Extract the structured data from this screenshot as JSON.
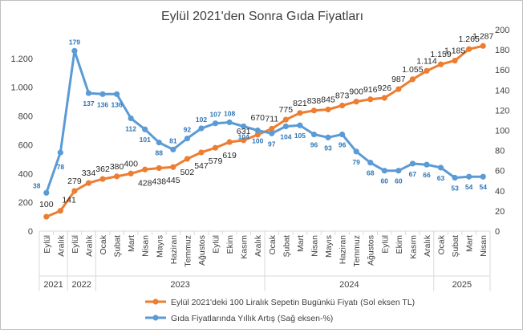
{
  "chart_data": {
    "type": "line",
    "title": "Eylül 2021'den Sonra Gıda Fiyatları",
    "left_axis": {
      "ylim": [
        0,
        1400
      ],
      "ticks": [
        "0",
        "200",
        "400",
        "600",
        "800",
        "1.000",
        "1.200"
      ],
      "tick_values": [
        0,
        200,
        400,
        600,
        800,
        1000,
        1200
      ]
    },
    "right_axis": {
      "ylim": [
        0,
        200
      ],
      "ticks": [
        "0",
        "20",
        "40",
        "60",
        "80",
        "100",
        "120",
        "140",
        "160",
        "180",
        "200"
      ],
      "tick_values": [
        0,
        20,
        40,
        60,
        80,
        100,
        120,
        140,
        160,
        180,
        200
      ]
    },
    "categories": [
      "Eylül",
      "Aralık",
      "Eylül",
      "Aralık",
      "Ocak",
      "Şubat",
      "Mart",
      "Nisan",
      "Mayıs",
      "Haziran",
      "Temmuz",
      "Ağustos",
      "Eylül",
      "Ekim",
      "Kasım",
      "Aralık",
      "Ocak",
      "Şubat",
      "Mart",
      "Nisan",
      "Mayıs",
      "Haziran",
      "Temmuz",
      "Ağustos",
      "Eylül",
      "Ekim",
      "Kasım",
      "Aralık",
      "Ocak",
      "Şubat",
      "Mart",
      "Nisan"
    ],
    "year_groups": [
      {
        "label": "2021",
        "count": 2
      },
      {
        "label": "2022",
        "count": 2
      },
      {
        "label": "2023",
        "count": 12
      },
      {
        "label": "2024",
        "count": 12
      },
      {
        "label": "2025",
        "count": 4
      }
    ],
    "series": [
      {
        "name": "Eylül 2021'deki 100 Liralık Sepetin Bugünkü  Fiyatı (Sol eksen TL)",
        "axis": "left",
        "color": "#ED7D31",
        "values": [
          100,
          141,
          279,
          334,
          362,
          380,
          400,
          428,
          438,
          445,
          502,
          547,
          579,
          619,
          631,
          670,
          711,
          775,
          821,
          838,
          845,
          873,
          900,
          916,
          926,
          987,
          1055,
          1114,
          1159,
          1185,
          1265,
          1287
        ],
        "labels": [
          "100",
          "141",
          "279",
          "334",
          "362",
          "380",
          "400",
          "428",
          "438",
          "445",
          "502",
          "547",
          "579",
          "619",
          "631",
          "670",
          "711",
          "775",
          "821",
          "838",
          "845",
          "873",
          "900",
          "916",
          "926",
          "987",
          "1.055",
          "1.114",
          "1.159",
          "1.185",
          "1.265",
          "1.287"
        ]
      },
      {
        "name": "Gıda Fiyatlarında Yıllık Artış (Sağ eksen-%)",
        "axis": "right",
        "color": "#5B9BD5",
        "values": [
          38,
          78,
          179,
          137,
          136,
          136,
          112,
          101,
          88,
          81,
          92,
          102,
          107,
          108,
          104,
          100,
          97,
          104,
          105,
          96,
          93,
          96,
          79,
          68,
          60,
          60,
          67,
          66,
          63,
          53,
          54,
          54
        ],
        "labels": [
          "38",
          "78",
          "179",
          "137",
          "136",
          "136",
          "112",
          "101",
          "88",
          "81",
          "92",
          "102",
          "107",
          "108",
          "104",
          "100",
          "97",
          "104",
          "105",
          "96",
          "93",
          "96",
          "79",
          "68",
          "60",
          "60",
          "67",
          "66",
          "63",
          "53",
          "54",
          "54"
        ]
      }
    ],
    "legend_position": "bottom",
    "grid": false
  }
}
